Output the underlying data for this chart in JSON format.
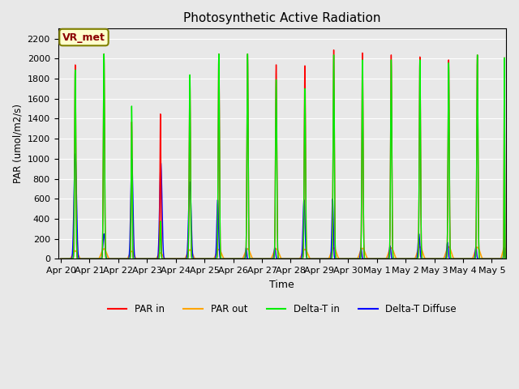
{
  "title": "Photosynthetic Active Radiation",
  "ylabel": "PAR (umol/m2/s)",
  "xlabel": "Time",
  "ylim": [
    0,
    2300
  ],
  "yticks": [
    0,
    200,
    400,
    600,
    800,
    1000,
    1200,
    1400,
    1600,
    1800,
    2000,
    2200
  ],
  "x_tick_labels": [
    "Apr 20",
    "Apr 21",
    "Apr 22",
    "Apr 23",
    "Apr 24",
    "Apr 25",
    "Apr 26",
    "Apr 27",
    "Apr 28",
    "Apr 29",
    "Apr 30",
    "May 1",
    "May 2",
    "May 3",
    "May 4",
    "May 5"
  ],
  "x_tick_positions": [
    0,
    1,
    2,
    3,
    4,
    5,
    6,
    7,
    8,
    9,
    10,
    11,
    12,
    13,
    14,
    15
  ],
  "background_color": "#e8e8e8",
  "plot_bg_color": "#e8e8e8",
  "grid_color": "#ffffff",
  "colors": {
    "par_in": "#ff0000",
    "par_out": "#ffa500",
    "delta_t_in": "#00ee00",
    "delta_t_diffuse": "#0000ff"
  },
  "legend_labels": [
    "PAR in",
    "PAR out",
    "Delta-T in",
    "Delta-T Diffuse"
  ],
  "annotation_text": "VR_met",
  "annotation_color": "#8b0000",
  "days": [
    {
      "par_in": 1950,
      "par_out": 80,
      "delta_in": 1900,
      "delta_diff": 1050,
      "ds": 0.38,
      "de": 0.62,
      "blue_ds": 0.33,
      "blue_de": 0.67
    },
    {
      "par_in": 2060,
      "par_out": 100,
      "delta_in": 2060,
      "delta_diff": 250,
      "ds": 0.38,
      "de": 0.62,
      "blue_ds": 0.36,
      "blue_de": 0.64
    },
    {
      "par_in": 1380,
      "par_out": 75,
      "delta_in": 1540,
      "delta_diff": 1000,
      "ds": 0.37,
      "de": 0.56,
      "blue_ds": 0.32,
      "blue_de": 0.62
    },
    {
      "par_in": 1460,
      "par_out": 60,
      "delta_in": 380,
      "delta_diff": 960,
      "ds": 0.37,
      "de": 0.56,
      "blue_ds": 0.32,
      "blue_de": 0.64
    },
    {
      "par_in": 1800,
      "par_out": 90,
      "delta_in": 1850,
      "delta_diff": 770,
      "ds": 0.37,
      "de": 0.61,
      "blue_ds": 0.32,
      "blue_de": 0.66
    },
    {
      "par_in": 2060,
      "par_out": 95,
      "delta_in": 2060,
      "delta_diff": 590,
      "ds": 0.38,
      "de": 0.62,
      "blue_ds": 0.34,
      "blue_de": 0.58
    },
    {
      "par_in": 2060,
      "par_out": 100,
      "delta_in": 2060,
      "delta_diff": 110,
      "ds": 0.38,
      "de": 0.62,
      "blue_ds": 0.37,
      "blue_de": 0.53
    },
    {
      "par_in": 1950,
      "par_out": 100,
      "delta_in": 1800,
      "delta_diff": 110,
      "ds": 0.37,
      "de": 0.62,
      "blue_ds": 0.35,
      "blue_de": 0.55
    },
    {
      "par_in": 1940,
      "par_out": 95,
      "delta_in": 1710,
      "delta_diff": 590,
      "ds": 0.37,
      "de": 0.62,
      "blue_ds": 0.33,
      "blue_de": 0.6
    },
    {
      "par_in": 2100,
      "par_out": 110,
      "delta_in": 2050,
      "delta_diff": 600,
      "ds": 0.38,
      "de": 0.62,
      "blue_ds": 0.36,
      "blue_de": 0.56
    },
    {
      "par_in": 2070,
      "par_out": 105,
      "delta_in": 2000,
      "delta_diff": 110,
      "ds": 0.38,
      "de": 0.62,
      "blue_ds": 0.36,
      "blue_de": 0.54
    },
    {
      "par_in": 2050,
      "par_out": 110,
      "delta_in": 2000,
      "delta_diff": 130,
      "ds": 0.38,
      "de": 0.62,
      "blue_ds": 0.36,
      "blue_de": 0.56
    },
    {
      "par_in": 2030,
      "par_out": 120,
      "delta_in": 2000,
      "delta_diff": 250,
      "ds": 0.38,
      "de": 0.62,
      "blue_ds": 0.35,
      "blue_de": 0.58
    },
    {
      "par_in": 2000,
      "par_out": 120,
      "delta_in": 1970,
      "delta_diff": 165,
      "ds": 0.38,
      "de": 0.62,
      "blue_ds": 0.36,
      "blue_de": 0.56
    },
    {
      "par_in": 2050,
      "par_out": 115,
      "delta_in": 2050,
      "delta_diff": 120,
      "ds": 0.38,
      "de": 0.62,
      "blue_ds": 0.36,
      "blue_de": 0.54
    },
    {
      "par_in": 2050,
      "par_out": 110,
      "delta_in": 2050,
      "delta_diff": 110,
      "ds": 0.38,
      "de": 0.5,
      "blue_ds": 0.36,
      "blue_de": 0.5
    }
  ]
}
